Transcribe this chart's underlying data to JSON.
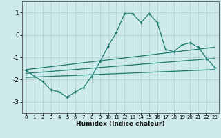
{
  "xlabel": "Humidex (Indice chaleur)",
  "ylabel": "",
  "background_color": "#ceeaea",
  "grid_color": "#b8d4d4",
  "line_color": "#1a7a6e",
  "spine_color": "#555555",
  "xlim": [
    -0.5,
    23.5
  ],
  "ylim": [
    -3.5,
    1.5
  ],
  "yticks": [
    -3,
    -2,
    -1,
    0,
    1
  ],
  "xticks": [
    0,
    1,
    2,
    3,
    4,
    5,
    6,
    7,
    8,
    9,
    10,
    11,
    12,
    13,
    14,
    15,
    16,
    17,
    18,
    19,
    20,
    21,
    22,
    23
  ],
  "main_x": [
    0,
    1,
    2,
    3,
    4,
    5,
    6,
    7,
    8,
    9,
    10,
    11,
    12,
    13,
    14,
    15,
    16,
    17,
    18,
    19,
    20,
    21,
    22,
    23
  ],
  "main_y": [
    -1.58,
    -1.85,
    -2.08,
    -2.45,
    -2.55,
    -2.78,
    -2.55,
    -2.35,
    -1.85,
    -1.2,
    -0.5,
    0.1,
    0.95,
    0.95,
    0.55,
    0.95,
    0.55,
    -0.65,
    -0.75,
    -0.45,
    -0.35,
    -0.55,
    -1.05,
    -1.45
  ],
  "upper_line_x": [
    0,
    23
  ],
  "upper_line_y": [
    -1.55,
    -0.55
  ],
  "lower_line_x": [
    0,
    23
  ],
  "lower_line_y": [
    -1.9,
    -1.55
  ],
  "mid_line_x": [
    0,
    23
  ],
  "mid_line_y": [
    -1.72,
    -1.05
  ]
}
